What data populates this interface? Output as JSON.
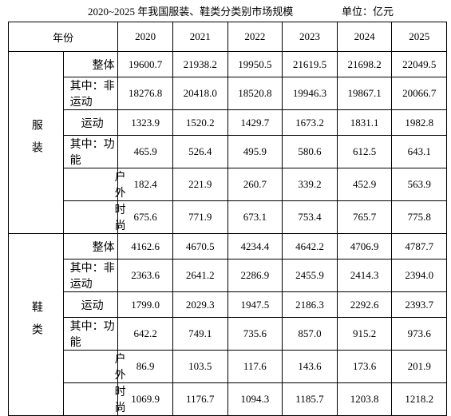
{
  "title": "2020~2025 年我国服装、鞋类分类别市场规模",
  "unit": "单位：亿元",
  "table": {
    "header": [
      "年份",
      "2020",
      "2021",
      "2022",
      "2023",
      "2024",
      "2025"
    ],
    "groups": [
      {
        "name": "服装",
        "rows": [
          {
            "label": "整体",
            "values": [
              "19600.7",
              "21938.2",
              "19950.5",
              "21619.5",
              "21698.2",
              "22049.5"
            ]
          },
          {
            "label": "其中：非运动",
            "values": [
              "18276.8",
              "20418.0",
              "18520.8",
              "19946.3",
              "19867.1",
              "20066.7"
            ]
          },
          {
            "label": "运动",
            "values": [
              "1323.9",
              "1520.2",
              "1429.7",
              "1673.2",
              "1831.1",
              "1982.8"
            ]
          },
          {
            "label": "其中：功能",
            "values": [
              "465.9",
              "526.4",
              "495.9",
              "580.6",
              "612.5",
              "643.1"
            ]
          },
          {
            "label": "户外",
            "values": [
              "182.4",
              "221.9",
              "260.7",
              "339.2",
              "452.9",
              "563.9"
            ]
          },
          {
            "label": "时尚",
            "values": [
              "675.6",
              "771.9",
              "673.1",
              "753.4",
              "765.7",
              "775.8"
            ]
          }
        ]
      },
      {
        "name": "鞋类",
        "rows": [
          {
            "label": "整体",
            "values": [
              "4162.6",
              "4670.5",
              "4234.4",
              "4642.2",
              "4706.9",
              "4787.7"
            ]
          },
          {
            "label": "其中：非运动",
            "values": [
              "2363.6",
              "2641.2",
              "2286.9",
              "2455.9",
              "2414.3",
              "2394.0"
            ]
          },
          {
            "label": "运动",
            "values": [
              "1799.0",
              "2029.3",
              "1947.5",
              "2186.3",
              "2292.6",
              "2393.7"
            ]
          },
          {
            "label": "其中：功能",
            "values": [
              "642.2",
              "749.1",
              "735.6",
              "857.0",
              "915.2",
              "973.6"
            ]
          },
          {
            "label": "户外",
            "values": [
              "86.9",
              "103.5",
              "117.6",
              "143.6",
              "173.6",
              "201.9"
            ]
          },
          {
            "label": "时尚",
            "values": [
              "1069.9",
              "1176.7",
              "1094.3",
              "1185.7",
              "1203.8",
              "1218.2"
            ]
          }
        ]
      }
    ]
  }
}
